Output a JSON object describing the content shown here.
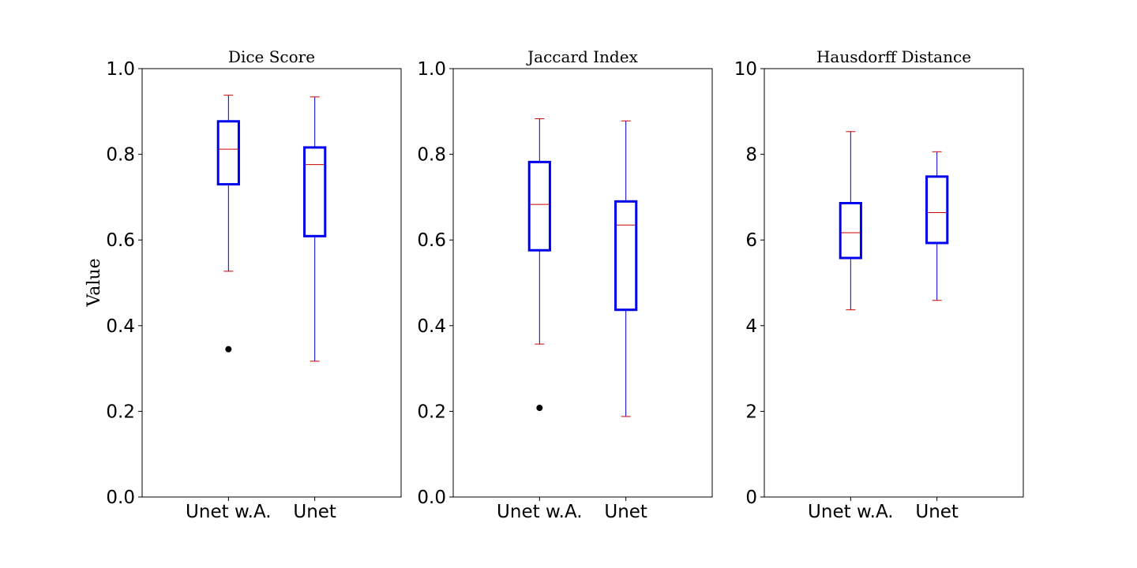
{
  "chart_data": [
    {
      "type": "boxplot",
      "title": "Dice Score",
      "ylabel": "Value",
      "categories": [
        "Unet w.A.",
        "Unet"
      ],
      "ylim": [
        0,
        1.0
      ],
      "yticks": [
        0.0,
        0.2,
        0.4,
        0.6,
        0.8,
        1.0
      ],
      "ytick_labels": [
        "0.0",
        "0.2",
        "0.4",
        "0.6",
        "0.8",
        "1.0"
      ],
      "boxes": [
        {
          "whislo": 0.527,
          "q1": 0.73,
          "med": 0.812,
          "q3": 0.877,
          "whishi": 0.938,
          "fliers": [
            0.345
          ]
        },
        {
          "whislo": 0.317,
          "q1": 0.609,
          "med": 0.776,
          "q3": 0.816,
          "whishi": 0.934,
          "fliers": []
        }
      ]
    },
    {
      "type": "boxplot",
      "title": "Jaccard Index",
      "ylabel": "",
      "categories": [
        "Unet w.A.",
        "Unet"
      ],
      "ylim": [
        0,
        1.0
      ],
      "yticks": [
        0.0,
        0.2,
        0.4,
        0.6,
        0.8,
        1.0
      ],
      "ytick_labels": [
        "0.0",
        "0.2",
        "0.4",
        "0.6",
        "0.8",
        "1.0"
      ],
      "boxes": [
        {
          "whislo": 0.357,
          "q1": 0.576,
          "med": 0.683,
          "q3": 0.782,
          "whishi": 0.883,
          "fliers": [
            0.208
          ]
        },
        {
          "whislo": 0.188,
          "q1": 0.437,
          "med": 0.635,
          "q3": 0.69,
          "whishi": 0.878,
          "fliers": []
        }
      ]
    },
    {
      "type": "boxplot",
      "title": "Hausdorff Distance",
      "ylabel": "",
      "categories": [
        "Unet w.A.",
        "Unet"
      ],
      "ylim": [
        0,
        10
      ],
      "yticks": [
        0,
        2,
        4,
        6,
        8,
        10
      ],
      "ytick_labels": [
        "0",
        "2",
        "4",
        "6",
        "8",
        "10"
      ],
      "boxes": [
        {
          "whislo": 4.37,
          "q1": 5.58,
          "med": 6.17,
          "q3": 6.86,
          "whishi": 8.53,
          "fliers": []
        },
        {
          "whislo": 4.59,
          "q1": 5.93,
          "med": 6.64,
          "q3": 7.48,
          "whishi": 8.06,
          "fliers": []
        }
      ]
    }
  ],
  "colors": {
    "box": "#0000ee",
    "whisker": "#0000cc",
    "cap": "#cc0000",
    "median": "#cc0000",
    "flier": "#000000",
    "axes": "#000000"
  }
}
